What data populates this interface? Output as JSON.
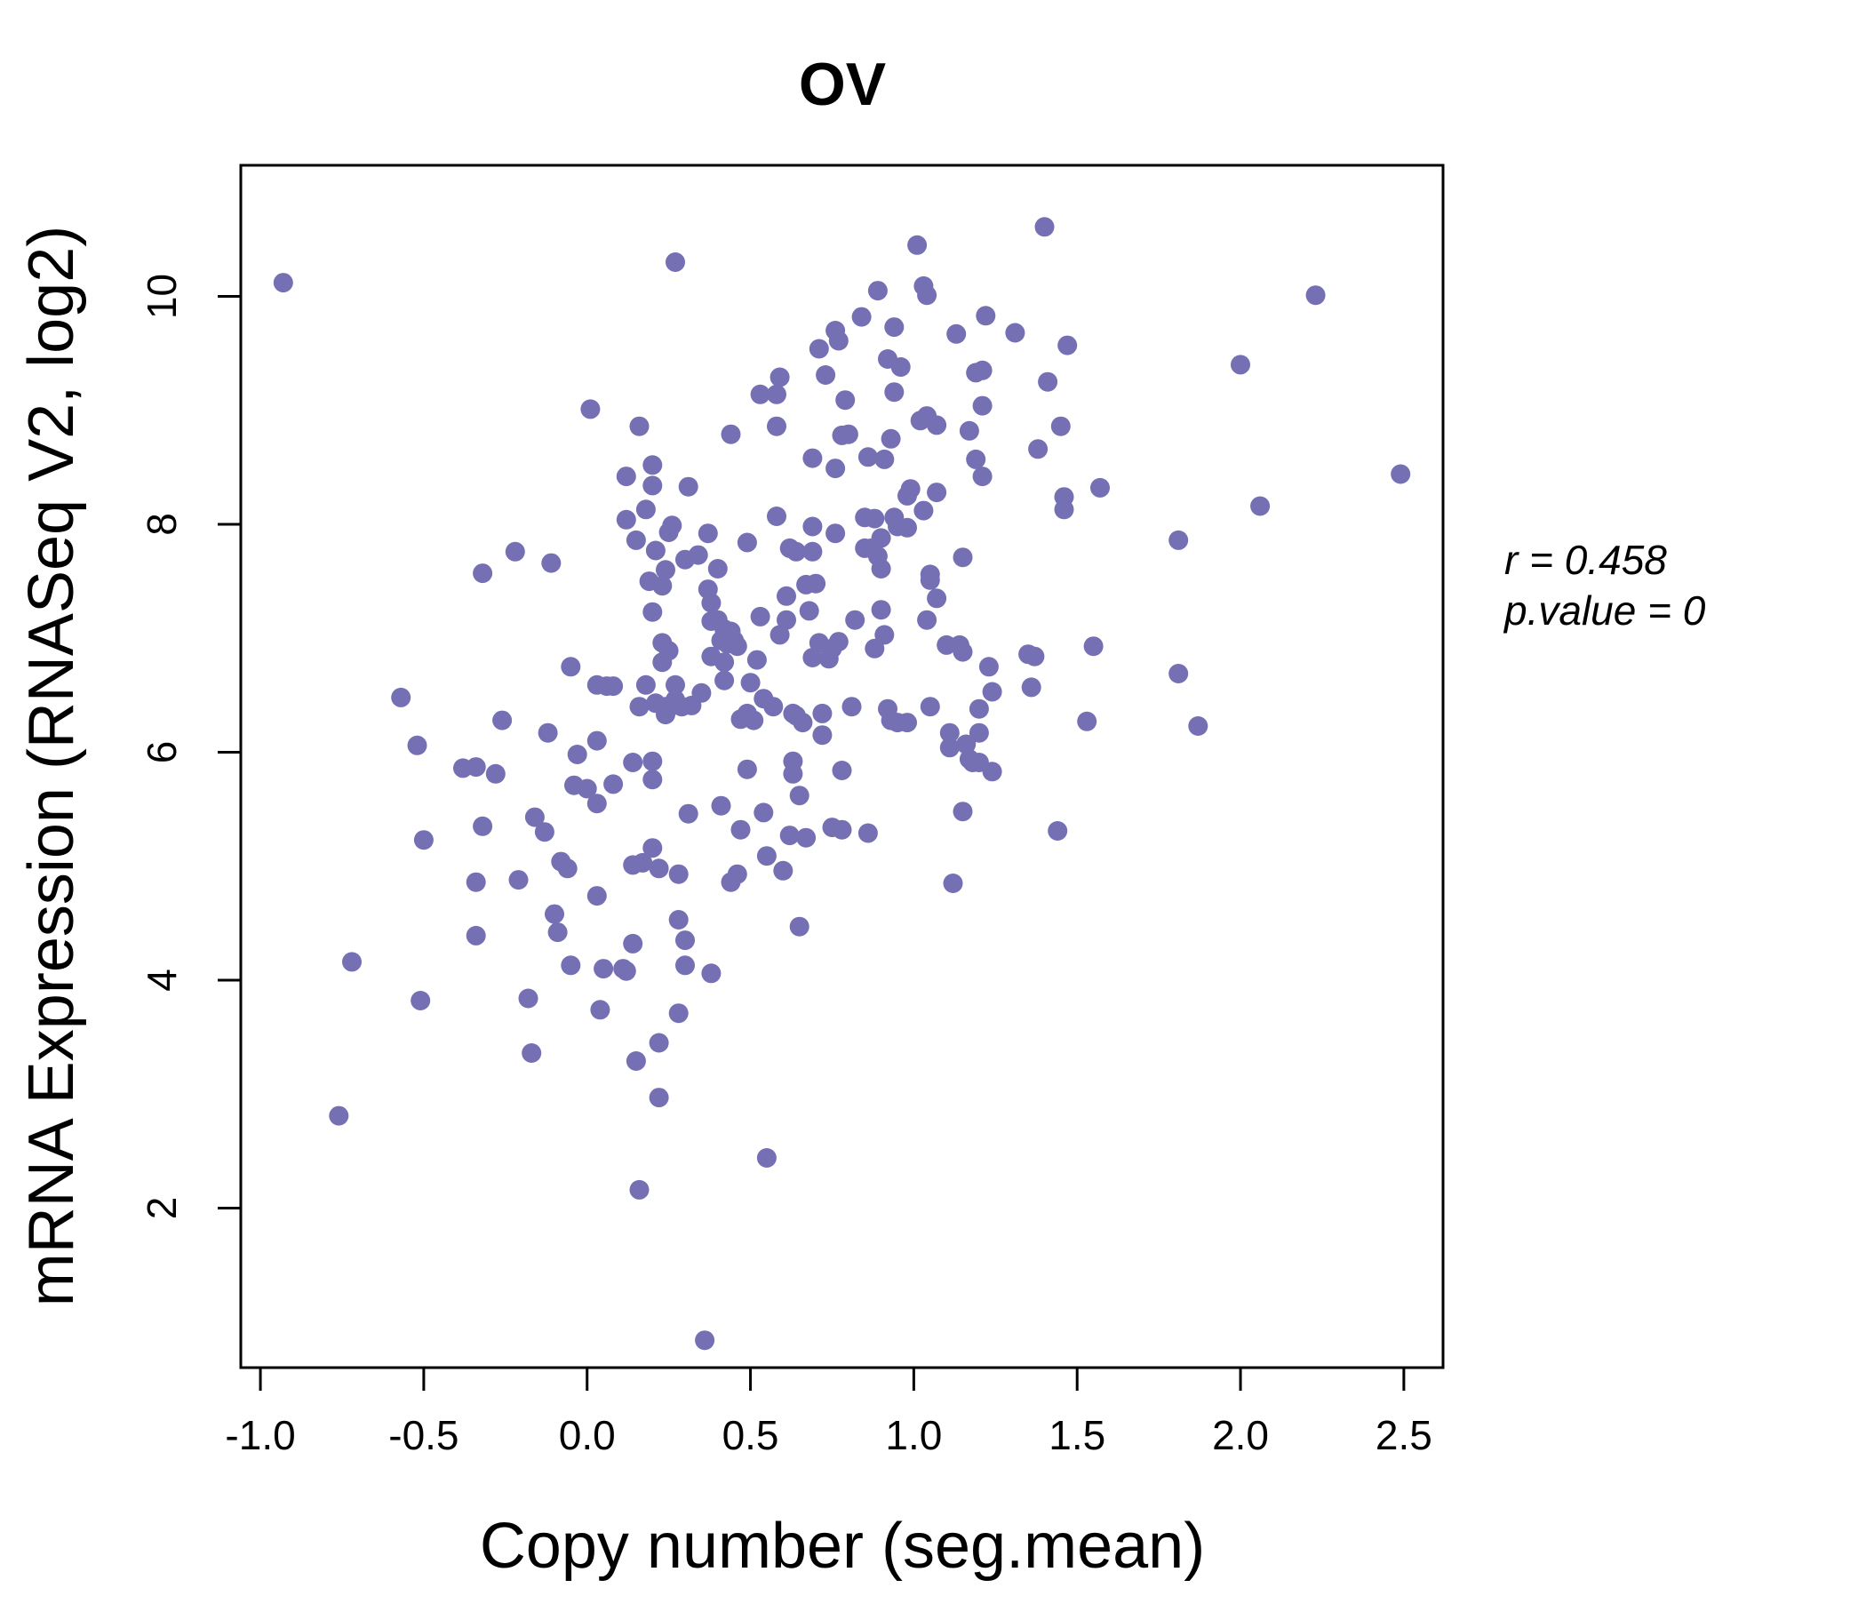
{
  "chart_data": {
    "type": "scatter",
    "title": "OV",
    "xlabel": "Copy number (seg.mean)",
    "ylabel": "mRNA Expression (RNASeq V2, log2)",
    "xlim": [
      -1.06,
      2.62
    ],
    "ylim": [
      0.6,
      11.15
    ],
    "x_ticks": [
      -1.0,
      -0.5,
      0.0,
      0.5,
      1.0,
      1.5,
      2.0,
      2.5
    ],
    "x_tick_labels": [
      "-1.0",
      "-0.5",
      "0.0",
      "0.5",
      "1.0",
      "1.5",
      "2.0",
      "2.5"
    ],
    "y_ticks": [
      2,
      4,
      6,
      8,
      10
    ],
    "y_tick_labels": [
      "2",
      "4",
      "6",
      "8",
      "10"
    ],
    "annotation": {
      "r_line": "r = 0.458",
      "p_line": "p.value = 0"
    },
    "colors": {
      "points": "#7470b3",
      "title": "#7470b3",
      "axes": "#000000"
    },
    "points": [
      [
        -0.93,
        10.12
      ],
      [
        -0.76,
        2.81
      ],
      [
        -0.72,
        4.16
      ],
      [
        -0.57,
        6.48
      ],
      [
        -0.52,
        6.06
      ],
      [
        -0.51,
        3.82
      ],
      [
        -0.5,
        5.23
      ],
      [
        -0.38,
        5.86
      ],
      [
        -0.34,
        5.87
      ],
      [
        -0.34,
        4.86
      ],
      [
        -0.34,
        4.39
      ],
      [
        -0.32,
        5.35
      ],
      [
        -0.32,
        7.57
      ],
      [
        -0.28,
        5.81
      ],
      [
        -0.26,
        6.28
      ],
      [
        -0.22,
        7.76
      ],
      [
        -0.21,
        4.88
      ],
      [
        -0.18,
        3.84
      ],
      [
        -0.17,
        3.36
      ],
      [
        -0.16,
        5.43
      ],
      [
        -0.13,
        5.3
      ],
      [
        -0.12,
        6.17
      ],
      [
        -0.11,
        7.66
      ],
      [
        -0.1,
        4.58
      ],
      [
        -0.09,
        4.42
      ],
      [
        -0.08,
        5.04
      ],
      [
        -0.06,
        4.98
      ],
      [
        -0.05,
        6.75
      ],
      [
        -0.05,
        4.13
      ],
      [
        -0.04,
        5.71
      ],
      [
        -0.03,
        5.98
      ],
      [
        0.0,
        5.68
      ],
      [
        0.01,
        9.01
      ],
      [
        0.03,
        6.1
      ],
      [
        0.03,
        6.59
      ],
      [
        0.03,
        5.55
      ],
      [
        0.03,
        4.74
      ],
      [
        0.04,
        3.74
      ],
      [
        0.05,
        4.1
      ],
      [
        0.06,
        6.58
      ],
      [
        0.08,
        6.58
      ],
      [
        0.08,
        5.72
      ],
      [
        0.11,
        4.1
      ],
      [
        0.12,
        4.08
      ],
      [
        0.12,
        8.42
      ],
      [
        0.12,
        8.04
      ],
      [
        0.14,
        5.01
      ],
      [
        0.14,
        5.91
      ],
      [
        0.14,
        4.32
      ],
      [
        0.15,
        3.29
      ],
      [
        0.15,
        7.86
      ],
      [
        0.16,
        6.4
      ],
      [
        0.16,
        8.86
      ],
      [
        0.16,
        2.16
      ],
      [
        0.17,
        5.03
      ],
      [
        0.18,
        6.59
      ],
      [
        0.18,
        8.13
      ],
      [
        0.19,
        7.5
      ],
      [
        0.2,
        8.52
      ],
      [
        0.2,
        8.34
      ],
      [
        0.2,
        5.16
      ],
      [
        0.2,
        5.92
      ],
      [
        0.2,
        5.76
      ],
      [
        0.2,
        7.23
      ],
      [
        0.21,
        7.77
      ],
      [
        0.21,
        6.43
      ],
      [
        0.22,
        4.98
      ],
      [
        0.22,
        3.45
      ],
      [
        0.22,
        2.97
      ],
      [
        0.23,
        6.96
      ],
      [
        0.23,
        7.46
      ],
      [
        0.23,
        6.79
      ],
      [
        0.24,
        7.6
      ],
      [
        0.24,
        6.4
      ],
      [
        0.24,
        6.33
      ],
      [
        0.25,
        7.93
      ],
      [
        0.25,
        6.89
      ],
      [
        0.25,
        6.39
      ],
      [
        0.26,
        7.99
      ],
      [
        0.27,
        6.59
      ],
      [
        0.27,
        6.46
      ],
      [
        0.27,
        10.3
      ],
      [
        0.28,
        4.93
      ],
      [
        0.28,
        3.71
      ],
      [
        0.28,
        4.53
      ],
      [
        0.29,
        6.4
      ],
      [
        0.3,
        7.69
      ],
      [
        0.3,
        4.13
      ],
      [
        0.3,
        4.35
      ],
      [
        0.31,
        8.33
      ],
      [
        0.31,
        5.46
      ],
      [
        0.32,
        6.41
      ],
      [
        0.34,
        7.73
      ],
      [
        0.35,
        6.52
      ],
      [
        0.36,
        0.84
      ],
      [
        0.37,
        7.92
      ],
      [
        0.37,
        7.43
      ],
      [
        0.38,
        6.84
      ],
      [
        0.38,
        7.31
      ],
      [
        0.38,
        7.15
      ],
      [
        0.38,
        4.06
      ],
      [
        0.4,
        7.16
      ],
      [
        0.4,
        7.61
      ],
      [
        0.41,
        6.98
      ],
      [
        0.41,
        5.53
      ],
      [
        0.42,
        7.08
      ],
      [
        0.42,
        6.79
      ],
      [
        0.42,
        6.63
      ],
      [
        0.43,
        6.95
      ],
      [
        0.44,
        7.06
      ],
      [
        0.44,
        8.79
      ],
      [
        0.44,
        4.86
      ],
      [
        0.45,
        6.98
      ],
      [
        0.46,
        6.93
      ],
      [
        0.46,
        4.93
      ],
      [
        0.47,
        6.29
      ],
      [
        0.47,
        5.32
      ],
      [
        0.49,
        7.84
      ],
      [
        0.49,
        6.34
      ],
      [
        0.49,
        5.85
      ],
      [
        0.5,
        6.61
      ],
      [
        0.51,
        6.28
      ],
      [
        0.52,
        6.81
      ],
      [
        0.53,
        9.14
      ],
      [
        0.53,
        7.19
      ],
      [
        0.54,
        6.47
      ],
      [
        0.54,
        5.47
      ],
      [
        0.55,
        5.09
      ],
      [
        0.55,
        2.44
      ],
      [
        0.57,
        6.4
      ],
      [
        0.58,
        8.07
      ],
      [
        0.58,
        9.14
      ],
      [
        0.58,
        8.86
      ],
      [
        0.59,
        9.29
      ],
      [
        0.59,
        7.03
      ],
      [
        0.6,
        4.96
      ],
      [
        0.61,
        7.37
      ],
      [
        0.61,
        7.16
      ],
      [
        0.62,
        5.27
      ],
      [
        0.62,
        7.79
      ],
      [
        0.63,
        5.92
      ],
      [
        0.63,
        5.81
      ],
      [
        0.63,
        6.34
      ],
      [
        0.64,
        7.76
      ],
      [
        0.64,
        6.32
      ],
      [
        0.65,
        4.47
      ],
      [
        0.65,
        5.62
      ],
      [
        0.66,
        6.26
      ],
      [
        0.67,
        5.25
      ],
      [
        0.67,
        7.47
      ],
      [
        0.68,
        7.24
      ],
      [
        0.69,
        7.98
      ],
      [
        0.69,
        6.83
      ],
      [
        0.69,
        7.76
      ],
      [
        0.69,
        8.58
      ],
      [
        0.7,
        7.48
      ],
      [
        0.71,
        6.96
      ],
      [
        0.71,
        9.54
      ],
      [
        0.72,
        6.15
      ],
      [
        0.72,
        6.34
      ],
      [
        0.73,
        9.31
      ],
      [
        0.74,
        6.82
      ],
      [
        0.75,
        5.34
      ],
      [
        0.75,
        6.91
      ],
      [
        0.76,
        8.49
      ],
      [
        0.76,
        7.92
      ],
      [
        0.76,
        9.7
      ],
      [
        0.77,
        9.61
      ],
      [
        0.77,
        6.97
      ],
      [
        0.78,
        5.32
      ],
      [
        0.78,
        8.78
      ],
      [
        0.78,
        5.84
      ],
      [
        0.79,
        9.09
      ],
      [
        0.8,
        8.79
      ],
      [
        0.81,
        6.4
      ],
      [
        0.82,
        7.16
      ],
      [
        0.84,
        9.82
      ],
      [
        0.85,
        7.79
      ],
      [
        0.85,
        8.06
      ],
      [
        0.86,
        8.59
      ],
      [
        0.86,
        5.29
      ],
      [
        0.87,
        7.79
      ],
      [
        0.88,
        8.05
      ],
      [
        0.88,
        6.91
      ],
      [
        0.89,
        7.72
      ],
      [
        0.89,
        10.05
      ],
      [
        0.9,
        7.61
      ],
      [
        0.9,
        7.25
      ],
      [
        0.9,
        7.88
      ],
      [
        0.91,
        8.57
      ],
      [
        0.91,
        7.03
      ],
      [
        0.92,
        6.38
      ],
      [
        0.92,
        9.45
      ],
      [
        0.93,
        6.28
      ],
      [
        0.93,
        8.75
      ],
      [
        0.94,
        9.73
      ],
      [
        0.94,
        9.16
      ],
      [
        0.94,
        8.06
      ],
      [
        0.95,
        6.26
      ],
      [
        0.95,
        7.98
      ],
      [
        0.96,
        9.38
      ],
      [
        0.98,
        6.26
      ],
      [
        0.98,
        8.25
      ],
      [
        0.98,
        7.97
      ],
      [
        0.99,
        8.31
      ],
      [
        1.01,
        10.45
      ],
      [
        1.02,
        8.91
      ],
      [
        1.03,
        8.12
      ],
      [
        1.03,
        10.09
      ],
      [
        1.04,
        8.95
      ],
      [
        1.04,
        7.16
      ],
      [
        1.04,
        10.01
      ],
      [
        1.05,
        7.56
      ],
      [
        1.05,
        6.4
      ],
      [
        1.05,
        7.51
      ],
      [
        1.07,
        8.87
      ],
      [
        1.07,
        7.35
      ],
      [
        1.07,
        8.28
      ],
      [
        1.1,
        6.94
      ],
      [
        1.11,
        6.17
      ],
      [
        1.11,
        6.04
      ],
      [
        1.12,
        4.85
      ],
      [
        1.13,
        9.67
      ],
      [
        1.14,
        6.94
      ],
      [
        1.15,
        6.88
      ],
      [
        1.15,
        7.71
      ],
      [
        1.15,
        5.48
      ],
      [
        1.16,
        6.07
      ],
      [
        1.17,
        8.82
      ],
      [
        1.17,
        5.94
      ],
      [
        1.18,
        5.91
      ],
      [
        1.19,
        8.57
      ],
      [
        1.19,
        9.33
      ],
      [
        1.2,
        6.17
      ],
      [
        1.2,
        5.91
      ],
      [
        1.2,
        6.38
      ],
      [
        1.21,
        9.35
      ],
      [
        1.21,
        8.42
      ],
      [
        1.21,
        9.04
      ],
      [
        1.22,
        9.83
      ],
      [
        1.23,
        6.75
      ],
      [
        1.24,
        6.53
      ],
      [
        1.24,
        5.83
      ],
      [
        1.31,
        9.68
      ],
      [
        1.35,
        6.86
      ],
      [
        1.36,
        6.57
      ],
      [
        1.37,
        6.84
      ],
      [
        1.38,
        8.66
      ],
      [
        1.4,
        10.61
      ],
      [
        1.41,
        9.25
      ],
      [
        1.44,
        5.31
      ],
      [
        1.45,
        8.86
      ],
      [
        1.46,
        8.24
      ],
      [
        1.46,
        8.13
      ],
      [
        1.47,
        9.57
      ],
      [
        1.53,
        6.27
      ],
      [
        1.55,
        6.93
      ],
      [
        1.57,
        8.32
      ],
      [
        1.81,
        7.86
      ],
      [
        1.81,
        6.69
      ],
      [
        1.87,
        6.23
      ],
      [
        2.0,
        9.4
      ],
      [
        2.06,
        8.16
      ],
      [
        2.23,
        10.01
      ],
      [
        2.49,
        8.44
      ]
    ]
  }
}
